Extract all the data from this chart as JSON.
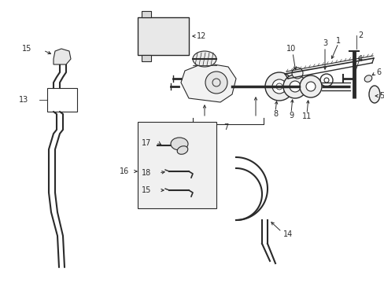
{
  "background_color": "#ffffff",
  "fig_width": 4.89,
  "fig_height": 3.6,
  "dpi": 100,
  "line_color": "#2a2a2a",
  "label_fontsize": 7.0
}
